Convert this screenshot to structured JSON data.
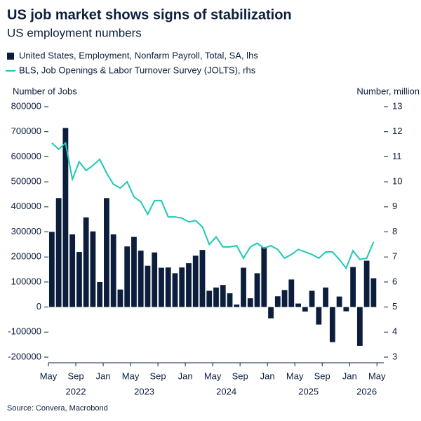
{
  "chart_data": {
    "type": "bar-line",
    "title": "US job market shows signs of stabilization",
    "subtitle": "US employment numbers",
    "y_label": "Number of Jobs",
    "y2_label": "Number, million",
    "source": "Source: Convera, Macrobond",
    "categories": [
      "May",
      null,
      null,
      null,
      "Sep",
      null,
      null,
      null,
      "Jan",
      null,
      null,
      null,
      "May",
      null,
      null,
      null,
      "Sep",
      null,
      null,
      null,
      "Jan",
      null,
      null,
      null,
      "May",
      null,
      null,
      null,
      "Sep",
      null,
      null,
      null,
      "Jan",
      null,
      null,
      null,
      "May",
      null,
      null,
      null,
      "Sep",
      null,
      null,
      null,
      "Jan",
      null,
      null,
      null,
      "May"
    ],
    "years": [
      "2022",
      "2023",
      "2024",
      "2025",
      "2026"
    ],
    "series": [
      {
        "name": "United States, Employment, Nonfarm Payroll, Total, SA, lhs",
        "type": "bar",
        "color": "#0c1e3c",
        "values": [
          300000,
          435000,
          715000,
          290000,
          220000,
          358000,
          302000,
          100000,
          435000,
          290000,
          70000,
          242000,
          280000,
          225000,
          165000,
          218000,
          157000,
          158000,
          135000,
          158000,
          175000,
          205000,
          228000,
          65000,
          78000,
          88000,
          55000,
          10000,
          157000,
          35000,
          135000,
          240000,
          -45000,
          43000,
          68000,
          110000,
          14000,
          -18000,
          65000,
          -70000,
          78000,
          -140000,
          42000,
          -17000,
          160000,
          -155000,
          185000,
          115000,
          null
        ]
      },
      {
        "name": "BLS, Job Openings & Labor Turnover Survey (JOLTS), rhs",
        "type": "line",
        "axis": "y2",
        "color": "#1ec8b4",
        "values": [
          11.55,
          11.3,
          11.55,
          10.1,
          10.8,
          10.45,
          10.65,
          10.9,
          10.35,
          9.9,
          9.75,
          10.0,
          9.4,
          9.2,
          8.7,
          9.25,
          9.25,
          8.6,
          8.6,
          8.55,
          8.4,
          8.45,
          8.2,
          7.5,
          7.8,
          7.4,
          7.4,
          7.45,
          6.95,
          7.4,
          7.55,
          7.35,
          7.45,
          7.3,
          6.95,
          7.1,
          7.3,
          7.2,
          7.1,
          6.95,
          7.2,
          7.2,
          6.9,
          6.55,
          7.25,
          6.9,
          6.95,
          7.6,
          null
        ]
      }
    ],
    "ylim": [
      -200000,
      800000
    ],
    "yticks": [
      -200000,
      -100000,
      0,
      100000,
      200000,
      300000,
      400000,
      500000,
      600000,
      700000,
      800000
    ],
    "y2lim": [
      3,
      13
    ],
    "y2ticks": [
      3,
      4,
      5,
      6,
      7,
      8,
      9,
      10,
      11,
      12,
      13
    ]
  }
}
